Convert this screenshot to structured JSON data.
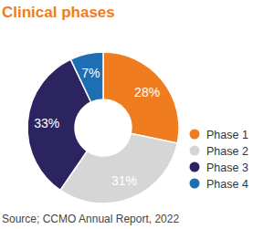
{
  "chart_data": {
    "type": "donut",
    "title": "Clinical phases",
    "categories": [
      "Phase 1",
      "Phase 2",
      "Phase 3",
      "Phase 4"
    ],
    "values": [
      28,
      31,
      33,
      7
    ],
    "value_labels": [
      "28%",
      "31%",
      "33%",
      "7%"
    ],
    "colors": [
      "#ef7d1f",
      "#d6d6d6",
      "#2b2461",
      "#1f6db3"
    ],
    "data_labels": true,
    "legend": "right",
    "annotations": [
      "Source; CCMO Annual Report, 2022"
    ]
  }
}
